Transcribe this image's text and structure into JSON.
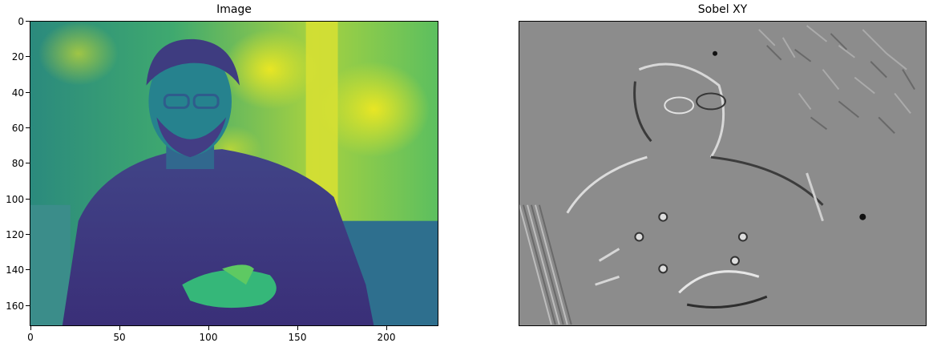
{
  "figure": {
    "left_panel": {
      "title": "Image",
      "description_colormap": "viridis",
      "x_ticks": [
        "0",
        "50",
        "100",
        "150",
        "200"
      ],
      "y_ticks": [
        "0",
        "20",
        "40",
        "60",
        "80",
        "100",
        "120",
        "140",
        "160"
      ],
      "x_range": [
        0,
        229
      ],
      "y_range": [
        0,
        172
      ]
    },
    "right_panel": {
      "title": "Sobel XY",
      "description_colormap": "gray"
    }
  }
}
